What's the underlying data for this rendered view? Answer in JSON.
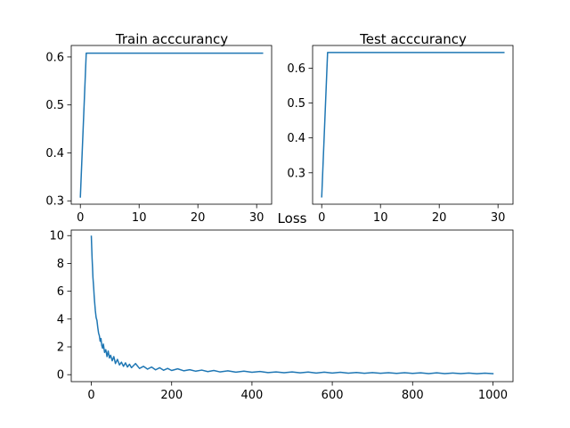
{
  "colors": {
    "series": "#1f77b4",
    "axes": "#000000",
    "background": "#ffffff"
  },
  "chart_data": [
    {
      "id": "train",
      "type": "line",
      "title": "Train acccurancy",
      "xlabel": "",
      "ylabel": "",
      "xlim": [
        -1.55,
        32.55
      ],
      "ylim": [
        0.293,
        0.624
      ],
      "xticks": [
        0,
        10,
        20,
        30
      ],
      "yticks": [
        0.3,
        0.4,
        0.5,
        0.6
      ],
      "xtick_labels": [
        "0",
        "10",
        "20",
        "30"
      ],
      "ytick_labels": [
        "0.3",
        "0.4",
        "0.5",
        "0.6"
      ],
      "grid": false,
      "series": [
        {
          "x": [
            0,
            1,
            2,
            3,
            4,
            5,
            6,
            7,
            8,
            9,
            10,
            11,
            12,
            13,
            14,
            15,
            16,
            17,
            18,
            19,
            20,
            21,
            22,
            23,
            24,
            25,
            26,
            27,
            28,
            29,
            30,
            31
          ],
          "y": [
            0.308,
            0.608,
            0.608,
            0.608,
            0.608,
            0.608,
            0.608,
            0.608,
            0.608,
            0.608,
            0.608,
            0.608,
            0.608,
            0.608,
            0.608,
            0.608,
            0.608,
            0.608,
            0.608,
            0.608,
            0.608,
            0.608,
            0.608,
            0.608,
            0.608,
            0.608,
            0.608,
            0.608,
            0.608,
            0.608,
            0.608,
            0.608
          ]
        }
      ]
    },
    {
      "id": "test",
      "type": "line",
      "title": "Test acccurancy",
      "xlabel": "",
      "ylabel": "",
      "xlim": [
        -1.55,
        32.55
      ],
      "ylim": [
        0.21,
        0.665
      ],
      "xticks": [
        0,
        10,
        20,
        30
      ],
      "yticks": [
        0.3,
        0.4,
        0.5,
        0.6
      ],
      "xtick_labels": [
        "0",
        "10",
        "20",
        "30"
      ],
      "ytick_labels": [
        "0.3",
        "0.4",
        "0.5",
        "0.6"
      ],
      "grid": false,
      "series": [
        {
          "x": [
            0,
            1,
            2,
            3,
            4,
            5,
            6,
            7,
            8,
            9,
            10,
            11,
            12,
            13,
            14,
            15,
            16,
            17,
            18,
            19,
            20,
            21,
            22,
            23,
            24,
            25,
            26,
            27,
            28,
            29,
            30,
            31
          ],
          "y": [
            0.231,
            0.645,
            0.645,
            0.645,
            0.645,
            0.645,
            0.645,
            0.645,
            0.645,
            0.645,
            0.645,
            0.645,
            0.645,
            0.645,
            0.645,
            0.645,
            0.645,
            0.645,
            0.645,
            0.645,
            0.645,
            0.645,
            0.645,
            0.645,
            0.645,
            0.645,
            0.645,
            0.645,
            0.645,
            0.645,
            0.645,
            0.645
          ]
        }
      ]
    },
    {
      "id": "loss",
      "type": "line",
      "title": "Loss",
      "xlabel": "",
      "ylabel": "",
      "xlim": [
        -50,
        1050
      ],
      "ylim": [
        -0.5,
        10.4
      ],
      "xticks": [
        0,
        200,
        400,
        600,
        800,
        1000
      ],
      "yticks": [
        0,
        2,
        4,
        6,
        8,
        10
      ],
      "xtick_labels": [
        "0",
        "200",
        "400",
        "600",
        "800",
        "1000"
      ],
      "ytick_labels": [
        "0",
        "2",
        "4",
        "6",
        "8",
        "10"
      ],
      "grid": false,
      "series": [
        {
          "x": [
            0,
            1,
            2,
            3,
            4,
            5,
            6,
            7,
            8,
            10,
            12,
            14,
            16,
            18,
            20,
            22,
            24,
            26,
            28,
            30,
            33,
            36,
            39,
            42,
            45,
            48,
            52,
            56,
            60,
            65,
            70,
            75,
            80,
            85,
            90,
            95,
            100,
            110,
            120,
            130,
            140,
            150,
            160,
            170,
            180,
            190,
            200,
            215,
            230,
            245,
            260,
            275,
            290,
            305,
            320,
            340,
            360,
            380,
            400,
            420,
            440,
            460,
            480,
            500,
            520,
            540,
            560,
            580,
            600,
            620,
            640,
            660,
            680,
            700,
            720,
            740,
            760,
            780,
            800,
            820,
            840,
            860,
            880,
            900,
            920,
            940,
            960,
            980,
            1000
          ],
          "y": [
            9.95,
            9.1,
            8.3,
            7.7,
            7.0,
            6.6,
            6.2,
            5.7,
            5.3,
            4.6,
            4.1,
            3.9,
            3.4,
            3.0,
            2.8,
            2.4,
            2.6,
            2.1,
            1.9,
            2.2,
            1.6,
            1.8,
            1.3,
            1.7,
            1.2,
            1.4,
            1.0,
            1.3,
            0.8,
            1.1,
            0.7,
            0.9,
            0.6,
            0.85,
            0.55,
            0.75,
            0.5,
            0.8,
            0.45,
            0.6,
            0.4,
            0.55,
            0.35,
            0.5,
            0.32,
            0.45,
            0.3,
            0.42,
            0.28,
            0.36,
            0.25,
            0.33,
            0.22,
            0.3,
            0.2,
            0.28,
            0.18,
            0.25,
            0.17,
            0.23,
            0.15,
            0.2,
            0.14,
            0.2,
            0.13,
            0.19,
            0.12,
            0.18,
            0.12,
            0.17,
            0.11,
            0.16,
            0.1,
            0.15,
            0.1,
            0.14,
            0.09,
            0.14,
            0.09,
            0.13,
            0.08,
            0.13,
            0.08,
            0.12,
            0.08,
            0.12,
            0.07,
            0.11,
            0.07
          ]
        }
      ]
    }
  ]
}
